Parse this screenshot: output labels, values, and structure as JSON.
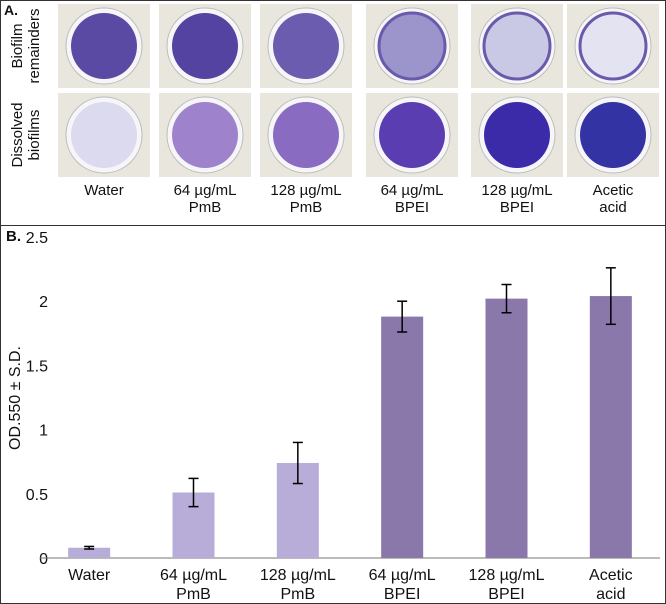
{
  "panel_a": {
    "label": "A.",
    "rows": [
      "Biofilm\nremainders",
      "Dissolved\nbiofilms"
    ],
    "columns": [
      "Water",
      "64 µg/mL\nPmB",
      "128 µg/mL\nPmB",
      "64 µg/mL\nBPEI",
      "128 µg/mL\nBPEI",
      "Acetic\nacid"
    ]
  },
  "chart_data": {
    "type": "bar",
    "panel_label": "B.",
    "y_label": "OD.550 ± S.D.",
    "categories": [
      "Water",
      "64 µg/mL\nPmB",
      "128 µg/mL\nPmB",
      "64 µg/mL\nBPEI",
      "128 µg/mL\nBPEI",
      "Acetic\nacid"
    ],
    "values": [
      0.08,
      0.51,
      0.74,
      1.88,
      2.02,
      2.04
    ],
    "errors": [
      0.01,
      0.11,
      0.16,
      0.12,
      0.11,
      0.22
    ],
    "colors": [
      "#b8acd8",
      "#b8acd8",
      "#b8acd8",
      "#8a78aa",
      "#8a78aa",
      "#8a78aa"
    ],
    "ylim": [
      0,
      2.5
    ],
    "yticks": [
      0,
      0.5,
      1,
      1.5,
      2,
      2.5
    ],
    "grid": false
  }
}
